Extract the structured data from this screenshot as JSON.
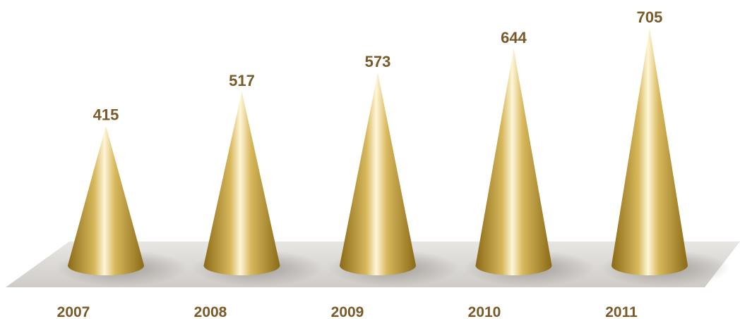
{
  "chart_data": {
    "type": "bar",
    "bar_shape": "cone",
    "categories": [
      "2007",
      "2008",
      "2009",
      "2010",
      "2011"
    ],
    "values": [
      415,
      517,
      573,
      644,
      705
    ],
    "title": "",
    "xlabel": "",
    "ylabel": "",
    "ylim": [
      0,
      705
    ],
    "grid": false,
    "legend": "none",
    "data_labels": true,
    "colors": {
      "cone_dark": "#8a6a16",
      "cone_mid": "#d8b85c",
      "cone_light": "#fff6d8",
      "label": "#7a5a28",
      "floor": "#e8e6e3",
      "floor_edge": "#cfccc8"
    }
  }
}
